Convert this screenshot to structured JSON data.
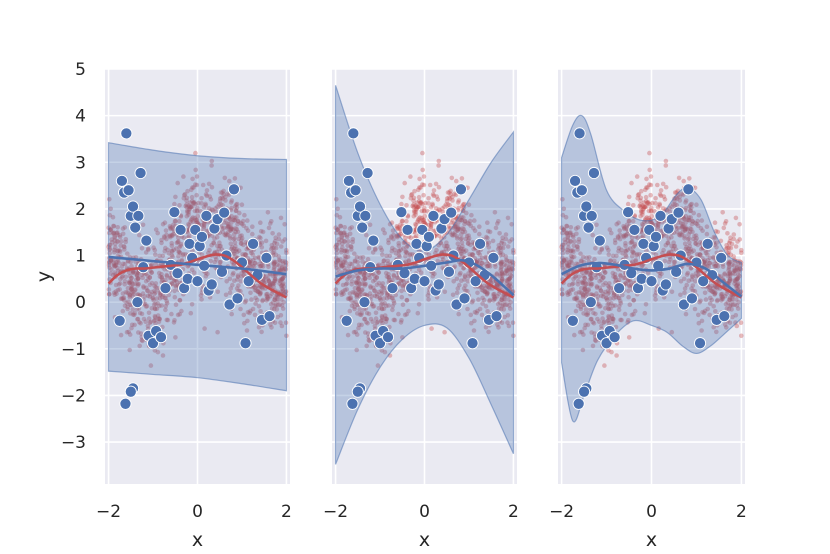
{
  "chart_data": {
    "type": "scatter",
    "description_free": true,
    "colors": {
      "background": "#eaeaf2",
      "grid": "#ffffff",
      "sample_points": "#c44e52",
      "train_points": "#4c72b0",
      "band_fill": "#4c72b0",
      "true_curve": "#c44e52",
      "pred_curve": "#4c72b0"
    },
    "xlim": [
      -2.08,
      2.08
    ],
    "ylim": [
      -3.9,
      5.0
    ],
    "x_ticks": [
      -2,
      0,
      2
    ],
    "y_ticks": [
      -3,
      -2,
      -1,
      0,
      1,
      2,
      3,
      4,
      5
    ],
    "x_tick_labels": [
      "−2",
      "0",
      "2"
    ],
    "y_tick_labels": [
      "−3",
      "−2",
      "−1",
      "0",
      "1",
      "2",
      "3",
      "4",
      "5"
    ],
    "xlabel": "x",
    "ylabel": "y",
    "grid": true,
    "train_points": [
      [
        -1.7,
        2.6
      ],
      [
        -1.65,
        2.35
      ],
      [
        -1.6,
        3.62
      ],
      [
        -1.55,
        2.4
      ],
      [
        -1.5,
        1.85
      ],
      [
        -1.45,
        2.05
      ],
      [
        -1.4,
        1.6
      ],
      [
        -1.33,
        1.85
      ],
      [
        -1.28,
        2.77
      ],
      [
        -1.22,
        0.75
      ],
      [
        -1.15,
        1.32
      ],
      [
        -1.1,
        -0.72
      ],
      [
        -1.0,
        -0.88
      ],
      [
        -0.93,
        -0.62
      ],
      [
        -0.82,
        -0.75
      ],
      [
        -0.72,
        0.3
      ],
      [
        -0.6,
        0.8
      ],
      [
        -0.52,
        1.93
      ],
      [
        -0.45,
        0.62
      ],
      [
        -0.38,
        1.55
      ],
      [
        -0.3,
        0.3
      ],
      [
        -0.22,
        0.5
      ],
      [
        -0.18,
        1.25
      ],
      [
        -0.12,
        0.95
      ],
      [
        -0.05,
        1.55
      ],
      [
        0.0,
        0.45
      ],
      [
        0.05,
        1.2
      ],
      [
        0.1,
        1.4
      ],
      [
        0.15,
        0.78
      ],
      [
        0.2,
        1.85
      ],
      [
        0.25,
        0.25
      ],
      [
        0.32,
        0.38
      ],
      [
        0.38,
        1.58
      ],
      [
        0.45,
        1.78
      ],
      [
        0.55,
        0.65
      ],
      [
        0.65,
        1.0
      ],
      [
        0.72,
        -0.05
      ],
      [
        0.82,
        2.42
      ],
      [
        0.9,
        0.08
      ],
      [
        1.0,
        0.85
      ],
      [
        1.08,
        -0.88
      ],
      [
        1.15,
        0.45
      ],
      [
        1.25,
        1.25
      ],
      [
        1.35,
        0.58
      ],
      [
        1.45,
        -0.38
      ],
      [
        1.55,
        0.95
      ],
      [
        1.62,
        -0.3
      ],
      [
        -1.75,
        -0.4
      ],
      [
        -1.62,
        -2.18
      ],
      [
        -1.45,
        -1.85
      ],
      [
        -1.5,
        -1.92
      ],
      [
        -1.35,
        0.0
      ],
      [
        0.6,
        1.92
      ]
    ],
    "bands": [
      {
        "panel": 1,
        "upper": [
          [
            -2,
            3.42
          ],
          [
            -1,
            3.26
          ],
          [
            0,
            3.14
          ],
          [
            1,
            3.08
          ],
          [
            2,
            3.06
          ]
        ],
        "lower": [
          [
            -2,
            -1.48
          ],
          [
            -1,
            -1.55
          ],
          [
            0,
            -1.62
          ],
          [
            1,
            -1.75
          ],
          [
            2,
            -1.9
          ]
        ]
      },
      {
        "panel": 2,
        "upper": [
          [
            -2,
            4.65
          ],
          [
            -1.5,
            3.2
          ],
          [
            -1,
            2.1
          ],
          [
            -0.5,
            1.35
          ],
          [
            0,
            1.1
          ],
          [
            0.5,
            1.45
          ],
          [
            1,
            2.2
          ],
          [
            1.5,
            3.0
          ],
          [
            2,
            3.65
          ]
        ],
        "lower": [
          [
            -2,
            -3.48
          ],
          [
            -1.5,
            -2.3
          ],
          [
            -1,
            -1.4
          ],
          [
            -0.5,
            -0.8
          ],
          [
            0,
            -0.5
          ],
          [
            0.5,
            -0.55
          ],
          [
            1,
            -1.2
          ],
          [
            1.5,
            -2.2
          ],
          [
            2,
            -3.25
          ]
        ]
      },
      {
        "panel": 3,
        "upper": [
          [
            -2,
            3.1
          ],
          [
            -1.75,
            3.8
          ],
          [
            -1.55,
            4.0
          ],
          [
            -1.35,
            3.6
          ],
          [
            -1.0,
            2.4
          ],
          [
            -0.6,
            1.95
          ],
          [
            -0.2,
            1.75
          ],
          [
            0.2,
            1.85
          ],
          [
            0.55,
            2.3
          ],
          [
            0.8,
            2.45
          ],
          [
            1.1,
            2.2
          ],
          [
            1.4,
            1.5
          ],
          [
            1.7,
            1.0
          ],
          [
            2,
            0.85
          ]
        ],
        "lower": [
          [
            -2,
            -1.3
          ],
          [
            -1.75,
            -2.55
          ],
          [
            -1.5,
            -2.0
          ],
          [
            -1.2,
            -1.25
          ],
          [
            -0.8,
            -0.7
          ],
          [
            -0.4,
            -0.4
          ],
          [
            0.0,
            -0.5
          ],
          [
            0.35,
            -0.65
          ],
          [
            0.7,
            -0.95
          ],
          [
            1.0,
            -1.1
          ],
          [
            1.3,
            -0.95
          ],
          [
            1.6,
            -0.7
          ],
          [
            2,
            -0.35
          ]
        ]
      }
    ],
    "true_curve": [
      [
        -2,
        0.4
      ],
      [
        -1.8,
        0.58
      ],
      [
        -1.6,
        0.68
      ],
      [
        -1.4,
        0.72
      ],
      [
        -1.2,
        0.72
      ],
      [
        -1.0,
        0.74
      ],
      [
        -0.8,
        0.76
      ],
      [
        -0.6,
        0.78
      ],
      [
        -0.4,
        0.8
      ],
      [
        -0.2,
        0.85
      ],
      [
        0.0,
        0.92
      ],
      [
        0.2,
        0.98
      ],
      [
        0.4,
        1.02
      ],
      [
        0.6,
        1.0
      ],
      [
        0.8,
        0.9
      ],
      [
        1.0,
        0.75
      ],
      [
        1.2,
        0.58
      ],
      [
        1.4,
        0.42
      ],
      [
        1.6,
        0.3
      ],
      [
        1.8,
        0.2
      ],
      [
        2.0,
        0.1
      ]
    ],
    "pred_curves": [
      {
        "panel": 1,
        "points": [
          [
            -2,
            0.97
          ],
          [
            -1,
            0.88
          ],
          [
            0,
            0.8
          ],
          [
            1,
            0.72
          ],
          [
            2,
            0.6
          ]
        ]
      },
      {
        "panel": 2,
        "points": [
          [
            -2,
            0.55
          ],
          [
            -1.5,
            0.68
          ],
          [
            -1.0,
            0.72
          ],
          [
            -0.5,
            0.72
          ],
          [
            0.0,
            0.78
          ],
          [
            0.5,
            0.85
          ],
          [
            0.8,
            0.9
          ],
          [
            1.0,
            0.87
          ],
          [
            1.3,
            0.72
          ],
          [
            1.6,
            0.5
          ],
          [
            2.0,
            0.15
          ]
        ]
      },
      {
        "panel": 3,
        "points": [
          [
            -2,
            0.6
          ],
          [
            -1.6,
            0.78
          ],
          [
            -1.2,
            0.84
          ],
          [
            -0.8,
            0.8
          ],
          [
            -0.4,
            0.72
          ],
          [
            0.0,
            0.68
          ],
          [
            0.4,
            0.72
          ],
          [
            0.8,
            0.82
          ],
          [
            1.2,
            0.72
          ],
          [
            1.6,
            0.42
          ],
          [
            2.0,
            0.12
          ]
        ]
      }
    ]
  }
}
